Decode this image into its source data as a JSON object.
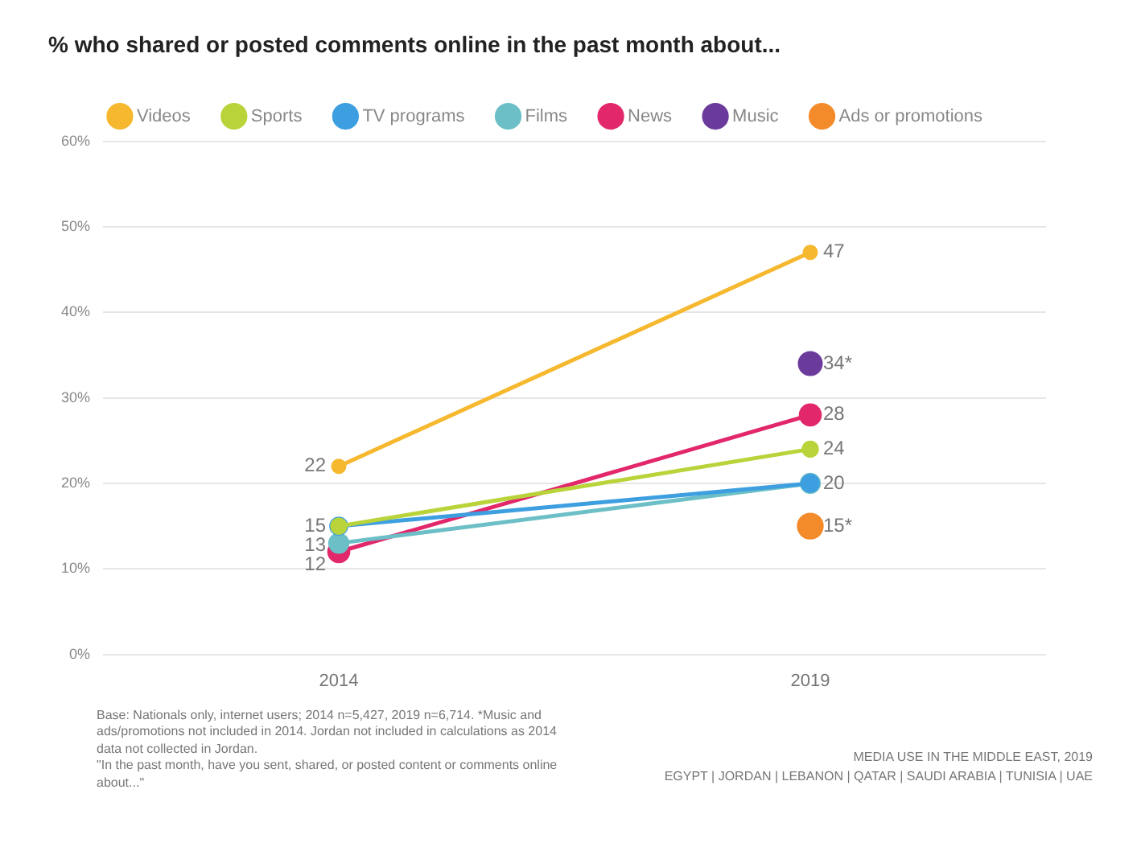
{
  "chart_data": {
    "type": "line",
    "title": "% who shared or posted comments online in the past month about...",
    "categories": [
      "2014",
      "2019"
    ],
    "series": [
      {
        "name": "Videos",
        "color": "#f5b82e",
        "values": [
          22,
          47
        ],
        "value_labels": [
          "22",
          "47"
        ]
      },
      {
        "name": "Sports",
        "color": "#b8d43a",
        "values": [
          15,
          24
        ],
        "value_labels": [
          "15",
          "24"
        ]
      },
      {
        "name": "TV programs",
        "color": "#3d9fe0",
        "values": [
          15,
          20
        ],
        "value_labels": [
          null,
          "20"
        ]
      },
      {
        "name": "Films",
        "color": "#6cbfc6",
        "values": [
          13,
          20
        ],
        "value_labels": [
          "13",
          null
        ]
      },
      {
        "name": "News",
        "color": "#e2276b",
        "values": [
          12,
          28
        ],
        "value_labels": [
          "12",
          "28"
        ]
      },
      {
        "name": "Music",
        "color": "#6b3b9c",
        "values": [
          null,
          34
        ],
        "value_labels": [
          null,
          "34*"
        ]
      },
      {
        "name": "Ads or promotions",
        "color": "#f38b2b",
        "values": [
          null,
          15
        ],
        "value_labels": [
          null,
          "15*"
        ]
      }
    ],
    "ylim": [
      0,
      60
    ],
    "yticks": [
      {
        "value": 0,
        "label": "0%"
      },
      {
        "value": 10,
        "label": "10%"
      },
      {
        "value": 20,
        "label": "20%"
      },
      {
        "value": 30,
        "label": "30%"
      },
      {
        "value": 40,
        "label": "40%"
      },
      {
        "value": 50,
        "label": "50%"
      },
      {
        "value": 60,
        "label": "60%"
      }
    ],
    "grid": "y",
    "legend": "top",
    "marker": "circle",
    "line_style": "solid",
    "annotations": [
      "Base: Nationals only, internet users; 2014 n=5,427, 2019 n=6,714. *Music and ads/promotions not included in 2014. Jordan not included in calculations as 2014 data not collected in Jordan.",
      "\"In the past month, have you sent, shared, or posted content or comments online about...\"",
      "MEDIA USE IN THE MIDDLE EAST, 2019",
      "EGYPT | JORDAN | LEBANON | QATAR | SAUDI ARABIA | TUNISIA | UAE"
    ]
  }
}
